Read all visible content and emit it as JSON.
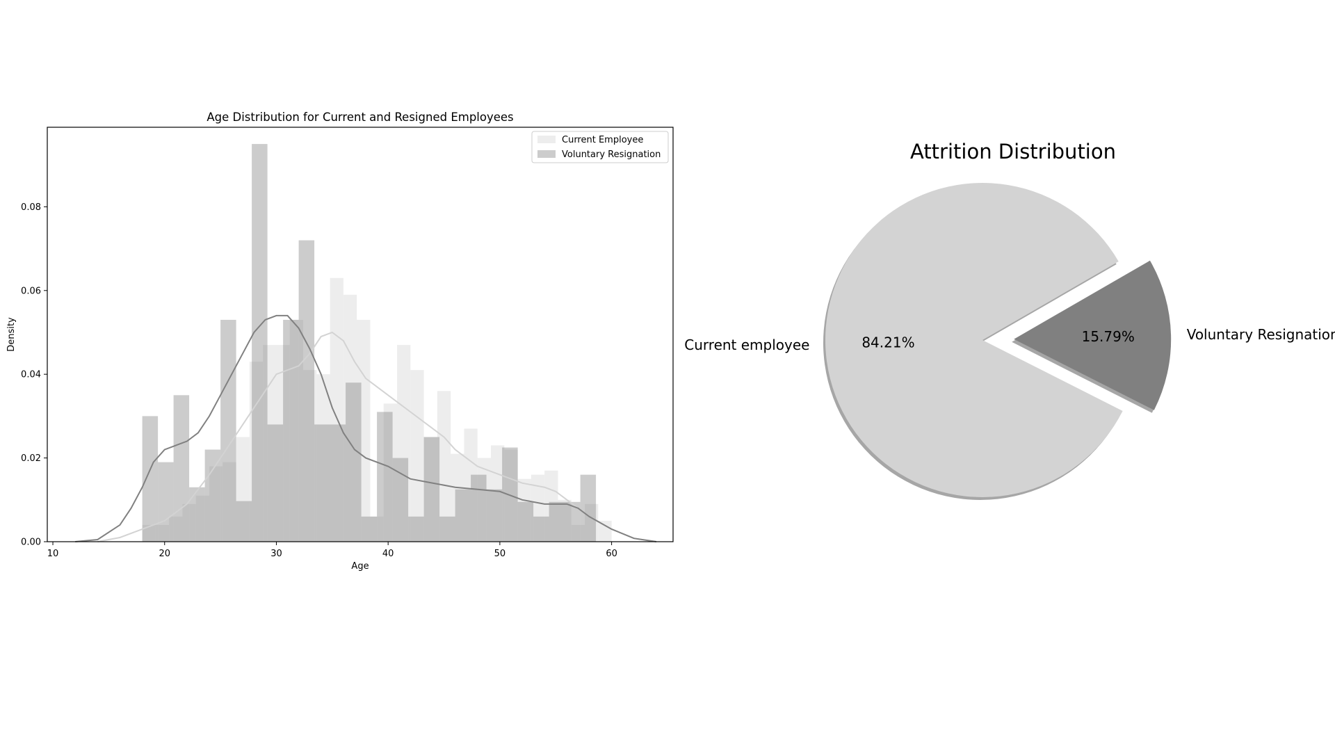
{
  "chart_data": [
    {
      "type": "histogram",
      "title": "Age Distribution for Current and Resigned Employees",
      "xlabel": "Age",
      "ylabel": "Density",
      "xlim": [
        9.5,
        65.5
      ],
      "ylim": [
        0,
        0.099
      ],
      "xticks": [
        10,
        20,
        30,
        40,
        50,
        60
      ],
      "yticks": [
        0.0,
        0.02,
        0.04,
        0.06,
        0.08
      ],
      "ytick_labels": [
        "0.00",
        "0.02",
        "0.04",
        "0.06",
        "0.08"
      ],
      "legend_position": "top-right",
      "series": [
        {
          "name": "Current Employee",
          "color": "#d3d3d3",
          "bar_opacity": 0.4,
          "bars": [
            {
              "x0": 18,
              "x1": 19.2,
              "y": 0.004
            },
            {
              "x0": 19.2,
              "x1": 20.4,
              "y": 0.004
            },
            {
              "x0": 20.4,
              "x1": 21.6,
              "y": 0.006
            },
            {
              "x0": 21.6,
              "x1": 22.8,
              "y": 0.009
            },
            {
              "x0": 22.8,
              "x1": 24.0,
              "y": 0.011
            },
            {
              "x0": 24.0,
              "x1": 25.2,
              "y": 0.018
            },
            {
              "x0": 25.2,
              "x1": 26.4,
              "y": 0.019
            },
            {
              "x0": 26.4,
              "x1": 27.6,
              "y": 0.025
            },
            {
              "x0": 27.6,
              "x1": 28.8,
              "y": 0.043
            },
            {
              "x0": 28.8,
              "x1": 30.0,
              "y": 0.047
            },
            {
              "x0": 30.0,
              "x1": 31.2,
              "y": 0.047
            },
            {
              "x0": 31.2,
              "x1": 32.4,
              "y": 0.053
            },
            {
              "x0": 32.4,
              "x1": 33.6,
              "y": 0.041
            },
            {
              "x0": 33.6,
              "x1": 34.8,
              "y": 0.04
            },
            {
              "x0": 34.8,
              "x1": 36.0,
              "y": 0.063
            },
            {
              "x0": 36.0,
              "x1": 37.2,
              "y": 0.059
            },
            {
              "x0": 37.2,
              "x1": 38.4,
              "y": 0.053
            },
            {
              "x0": 38.4,
              "x1": 39.6,
              "y": 0.006
            },
            {
              "x0": 39.6,
              "x1": 40.8,
              "y": 0.033
            },
            {
              "x0": 40.8,
              "x1": 42.0,
              "y": 0.047
            },
            {
              "x0": 42.0,
              "x1": 43.2,
              "y": 0.041
            },
            {
              "x0": 43.2,
              "x1": 44.4,
              "y": 0.025
            },
            {
              "x0": 44.4,
              "x1": 45.6,
              "y": 0.036
            },
            {
              "x0": 45.6,
              "x1": 46.8,
              "y": 0.021
            },
            {
              "x0": 46.8,
              "x1": 48.0,
              "y": 0.027
            },
            {
              "x0": 48.0,
              "x1": 49.2,
              "y": 0.02
            },
            {
              "x0": 49.2,
              "x1": 50.4,
              "y": 0.023
            },
            {
              "x0": 50.4,
              "x1": 51.6,
              "y": 0.022
            },
            {
              "x0": 51.6,
              "x1": 52.8,
              "y": 0.015
            },
            {
              "x0": 52.8,
              "x1": 54.0,
              "y": 0.016
            },
            {
              "x0": 54.0,
              "x1": 55.2,
              "y": 0.017
            },
            {
              "x0": 55.2,
              "x1": 56.4,
              "y": 0.01
            },
            {
              "x0": 56.4,
              "x1": 57.6,
              "y": 0.004
            },
            {
              "x0": 57.6,
              "x1": 58.8,
              "y": 0.009
            },
            {
              "x0": 58.8,
              "x1": 60.0,
              "y": 0.005
            }
          ],
          "kde": [
            [
              14,
              0
            ],
            [
              16,
              0.001
            ],
            [
              18,
              0.003
            ],
            [
              20,
              0.005
            ],
            [
              22,
              0.009
            ],
            [
              24,
              0.016
            ],
            [
              26,
              0.024
            ],
            [
              28,
              0.032
            ],
            [
              30,
              0.04
            ],
            [
              32,
              0.042
            ],
            [
              33,
              0.045
            ],
            [
              34,
              0.049
            ],
            [
              35,
              0.05
            ],
            [
              36,
              0.048
            ],
            [
              37,
              0.043
            ],
            [
              38,
              0.039
            ],
            [
              40,
              0.035
            ],
            [
              42,
              0.031
            ],
            [
              44,
              0.027
            ],
            [
              45,
              0.025
            ],
            [
              46,
              0.022
            ],
            [
              48,
              0.018
            ],
            [
              50,
              0.016
            ],
            [
              52,
              0.014
            ],
            [
              54,
              0.013
            ],
            [
              55,
              0.012
            ],
            [
              56,
              0.01
            ],
            [
              58,
              0.006
            ],
            [
              60,
              0.003
            ],
            [
              62,
              0.0008
            ],
            [
              64,
              0
            ]
          ]
        },
        {
          "name": "Voluntary Resignation",
          "color": "#808080",
          "bar_opacity": 0.4,
          "bars": [
            {
              "x0": 18,
              "x1": 19.4,
              "y": 0.03
            },
            {
              "x0": 19.4,
              "x1": 20.8,
              "y": 0.019
            },
            {
              "x0": 20.8,
              "x1": 22.2,
              "y": 0.035
            },
            {
              "x0": 22.2,
              "x1": 23.6,
              "y": 0.013
            },
            {
              "x0": 23.6,
              "x1": 25.0,
              "y": 0.022
            },
            {
              "x0": 25.0,
              "x1": 26.4,
              "y": 0.053
            },
            {
              "x0": 26.4,
              "x1": 27.8,
              "y": 0.0097
            },
            {
              "x0": 27.8,
              "x1": 29.2,
              "y": 0.095
            },
            {
              "x0": 29.2,
              "x1": 30.6,
              "y": 0.028
            },
            {
              "x0": 30.6,
              "x1": 32.0,
              "y": 0.053
            },
            {
              "x0": 32.0,
              "x1": 33.4,
              "y": 0.072
            },
            {
              "x0": 33.4,
              "x1": 34.8,
              "y": 0.028
            },
            {
              "x0": 34.8,
              "x1": 36.2,
              "y": 0.028
            },
            {
              "x0": 36.2,
              "x1": 37.6,
              "y": 0.038
            },
            {
              "x0": 37.6,
              "x1": 39.0,
              "y": 0.006
            },
            {
              "x0": 39.0,
              "x1": 40.4,
              "y": 0.031
            },
            {
              "x0": 40.4,
              "x1": 41.8,
              "y": 0.02
            },
            {
              "x0": 41.8,
              "x1": 43.2,
              "y": 0.006
            },
            {
              "x0": 43.2,
              "x1": 44.6,
              "y": 0.025
            },
            {
              "x0": 44.6,
              "x1": 46.0,
              "y": 0.006
            },
            {
              "x0": 46.0,
              "x1": 47.4,
              "y": 0.0125
            },
            {
              "x0": 47.4,
              "x1": 48.8,
              "y": 0.016
            },
            {
              "x0": 48.8,
              "x1": 50.2,
              "y": 0.0125
            },
            {
              "x0": 50.2,
              "x1": 51.6,
              "y": 0.0225
            },
            {
              "x0": 51.6,
              "x1": 53.0,
              "y": 0.0095
            },
            {
              "x0": 53.0,
              "x1": 54.4,
              "y": 0.006
            },
            {
              "x0": 54.4,
              "x1": 55.8,
              "y": 0.0095
            },
            {
              "x0": 55.8,
              "x1": 57.2,
              "y": 0.0095
            },
            {
              "x0": 57.2,
              "x1": 58.6,
              "y": 0.016
            }
          ],
          "kde": [
            [
              12,
              0
            ],
            [
              14,
              0.0005
            ],
            [
              16,
              0.004
            ],
            [
              17,
              0.008
            ],
            [
              18,
              0.013
            ],
            [
              19,
              0.019
            ],
            [
              20,
              0.022
            ],
            [
              21,
              0.023
            ],
            [
              22,
              0.024
            ],
            [
              23,
              0.026
            ],
            [
              24,
              0.03
            ],
            [
              25,
              0.035
            ],
            [
              26,
              0.04
            ],
            [
              27,
              0.045
            ],
            [
              28,
              0.05
            ],
            [
              29,
              0.053
            ],
            [
              30,
              0.054
            ],
            [
              31,
              0.054
            ],
            [
              32,
              0.051
            ],
            [
              33,
              0.046
            ],
            [
              34,
              0.04
            ],
            [
              35,
              0.032
            ],
            [
              36,
              0.026
            ],
            [
              37,
              0.022
            ],
            [
              38,
              0.02
            ],
            [
              40,
              0.018
            ],
            [
              42,
              0.015
            ],
            [
              44,
              0.014
            ],
            [
              46,
              0.013
            ],
            [
              48,
              0.0125
            ],
            [
              50,
              0.012
            ],
            [
              52,
              0.01
            ],
            [
              54,
              0.009
            ],
            [
              56,
              0.009
            ],
            [
              57,
              0.008
            ],
            [
              58,
              0.006
            ],
            [
              60,
              0.003
            ],
            [
              62,
              0.0008
            ],
            [
              64,
              0
            ]
          ]
        }
      ]
    },
    {
      "type": "pie",
      "title": "Attrition Distribution",
      "labels": [
        "Current employee",
        "Voluntary Resignation"
      ],
      "values": [
        84.21,
        15.79
      ],
      "autopct": [
        "84.21%",
        "15.79%"
      ],
      "colors": [
        "#d3d3d3",
        "#808080"
      ],
      "explode": [
        0,
        0.2
      ],
      "shadow": true,
      "start_angle_deg": 30
    }
  ]
}
